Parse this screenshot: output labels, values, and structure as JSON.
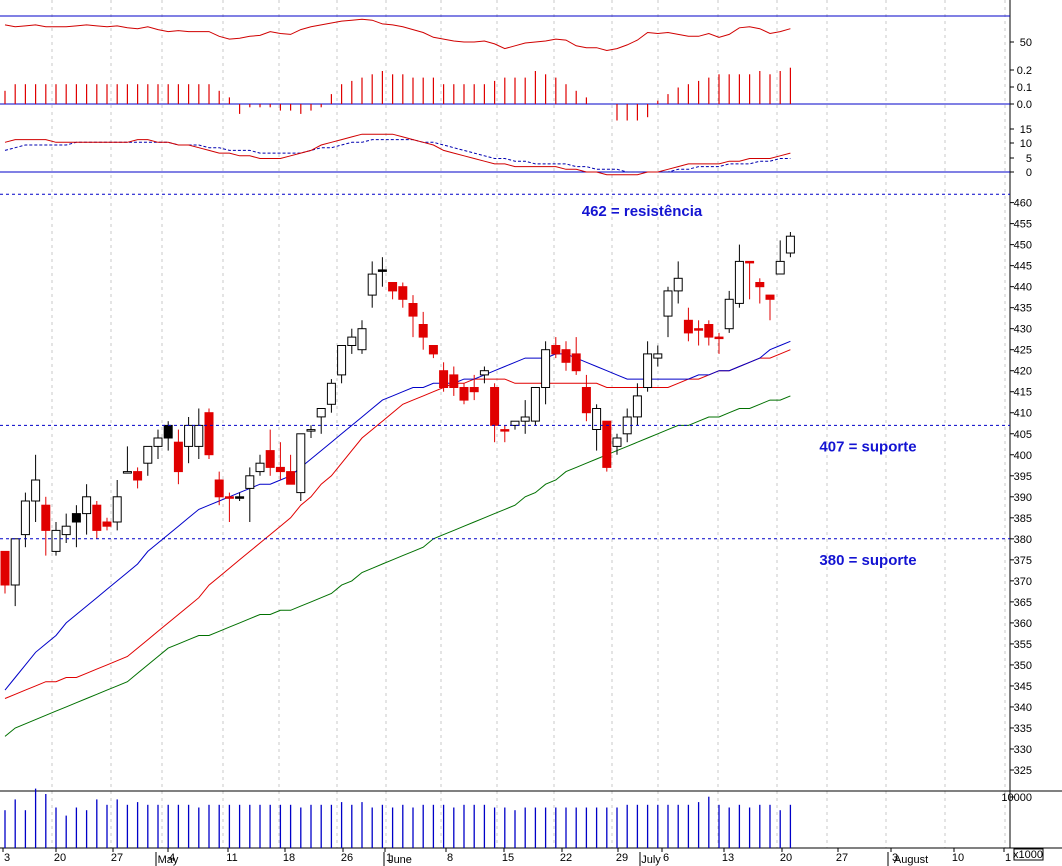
{
  "chart_data": {
    "type": "candlestick",
    "instrument_panels": [
      "rsi",
      "momentum",
      "macd",
      "price",
      "volume"
    ],
    "colors": {
      "up_body": "#ffffff",
      "down_body": "#e00000",
      "neutral_body": "#000000",
      "sma_short": "#0000c8",
      "sma_mid": "#e00000",
      "sma_long": "#007000",
      "reference_line": "#0000c8",
      "volume_bar": "#0000c8",
      "momentum_bar": "#e00000",
      "annotation_text": "#1414d2"
    },
    "price_panel": {
      "ylim": [
        320,
        463
      ],
      "y_ticks": [
        "460",
        "455",
        "450",
        "445",
        "440",
        "435",
        "430",
        "425",
        "420",
        "415",
        "410",
        "405",
        "400",
        "395",
        "390",
        "385",
        "380",
        "375",
        "370",
        "365",
        "360",
        "355",
        "350",
        "345",
        "340",
        "335",
        "330",
        "325"
      ],
      "candles": [
        {
          "o": 377,
          "h": 377,
          "l": 367,
          "c": 369,
          "d": "down"
        },
        {
          "o": 369,
          "h": 380,
          "l": 364,
          "c": 380,
          "d": "up"
        },
        {
          "o": 381,
          "h": 391,
          "l": 378,
          "c": 389,
          "d": "up"
        },
        {
          "o": 389,
          "h": 400,
          "l": 384,
          "c": 394,
          "d": "up"
        },
        {
          "o": 388,
          "h": 390,
          "l": 376,
          "c": 382,
          "d": "down"
        },
        {
          "o": 377,
          "h": 384,
          "l": 376,
          "c": 382,
          "d": "up"
        },
        {
          "o": 381,
          "h": 386,
          "l": 379,
          "c": 383,
          "d": "up"
        },
        {
          "o": 384,
          "h": 388,
          "l": 378,
          "c": 386,
          "d": "flat"
        },
        {
          "o": 386,
          "h": 393,
          "l": 381,
          "c": 390,
          "d": "up"
        },
        {
          "o": 388,
          "h": 389,
          "l": 380,
          "c": 382,
          "d": "down"
        },
        {
          "o": 384,
          "h": 385,
          "l": 382,
          "c": 383,
          "d": "down"
        },
        {
          "o": 384,
          "h": 394,
          "l": 382,
          "c": 390,
          "d": "up"
        },
        {
          "o": 396,
          "h": 402,
          "l": 396,
          "c": 396,
          "d": "up"
        },
        {
          "o": 396,
          "h": 397,
          "l": 392,
          "c": 394,
          "d": "down"
        },
        {
          "o": 398,
          "h": 401,
          "l": 395,
          "c": 402,
          "d": "up"
        },
        {
          "o": 402,
          "h": 406,
          "l": 399,
          "c": 404,
          "d": "up"
        },
        {
          "o": 407,
          "h": 408,
          "l": 401,
          "c": 404,
          "d": "flat"
        },
        {
          "o": 403,
          "h": 406,
          "l": 393,
          "c": 396,
          "d": "down"
        },
        {
          "o": 402,
          "h": 409,
          "l": 398,
          "c": 407,
          "d": "up"
        },
        {
          "o": 407,
          "h": 411,
          "l": 399,
          "c": 402,
          "d": "up"
        },
        {
          "o": 410,
          "h": 411,
          "l": 399,
          "c": 400,
          "d": "down"
        },
        {
          "o": 394,
          "h": 396,
          "l": 388,
          "c": 390,
          "d": "down"
        },
        {
          "o": 390,
          "h": 391,
          "l": 384,
          "c": 390,
          "d": "down"
        },
        {
          "o": 390,
          "h": 391,
          "l": 389,
          "c": 390,
          "d": "flat"
        },
        {
          "o": 392,
          "h": 397,
          "l": 384,
          "c": 395,
          "d": "up"
        },
        {
          "o": 396,
          "h": 400,
          "l": 395,
          "c": 398,
          "d": "up"
        },
        {
          "o": 401,
          "h": 406,
          "l": 395,
          "c": 397,
          "d": "down"
        },
        {
          "o": 397,
          "h": 403,
          "l": 394,
          "c": 396,
          "d": "down"
        },
        {
          "o": 396,
          "h": 400,
          "l": 393,
          "c": 393,
          "d": "down"
        },
        {
          "o": 391,
          "h": 405,
          "l": 389,
          "c": 405,
          "d": "up"
        },
        {
          "o": 406,
          "h": 407,
          "l": 404,
          "c": 406,
          "d": "up"
        },
        {
          "o": 409,
          "h": 411,
          "l": 405,
          "c": 411,
          "d": "up"
        },
        {
          "o": 412,
          "h": 418,
          "l": 410,
          "c": 417,
          "d": "up"
        },
        {
          "o": 419,
          "h": 426,
          "l": 417,
          "c": 426,
          "d": "up"
        },
        {
          "o": 426,
          "h": 430,
          "l": 424,
          "c": 428,
          "d": "up"
        },
        {
          "o": 425,
          "h": 432,
          "l": 424,
          "c": 430,
          "d": "up"
        },
        {
          "o": 438,
          "h": 446,
          "l": 435,
          "c": 443,
          "d": "up"
        },
        {
          "o": 444,
          "h": 447,
          "l": 440,
          "c": 444,
          "d": "flat"
        },
        {
          "o": 441,
          "h": 441,
          "l": 437,
          "c": 439,
          "d": "down"
        },
        {
          "o": 440,
          "h": 441,
          "l": 435,
          "c": 437,
          "d": "down"
        },
        {
          "o": 436,
          "h": 438,
          "l": 428,
          "c": 433,
          "d": "down"
        },
        {
          "o": 431,
          "h": 434,
          "l": 425,
          "c": 428,
          "d": "down"
        },
        {
          "o": 426,
          "h": 426,
          "l": 423,
          "c": 424,
          "d": "down"
        },
        {
          "o": 420,
          "h": 422,
          "l": 415,
          "c": 416,
          "d": "down"
        },
        {
          "o": 419,
          "h": 421,
          "l": 414,
          "c": 416,
          "d": "down"
        },
        {
          "o": 416,
          "h": 417,
          "l": 412,
          "c": 413,
          "d": "down"
        },
        {
          "o": 416,
          "h": 419,
          "l": 413,
          "c": 415,
          "d": "down"
        },
        {
          "o": 419,
          "h": 421,
          "l": 417,
          "c": 420,
          "d": "up"
        },
        {
          "o": 416,
          "h": 417,
          "l": 403,
          "c": 407,
          "d": "down"
        },
        {
          "o": 406,
          "h": 407,
          "l": 403,
          "c": 406,
          "d": "down"
        },
        {
          "o": 407,
          "h": 408,
          "l": 406,
          "c": 408,
          "d": "up"
        },
        {
          "o": 408,
          "h": 413,
          "l": 405,
          "c": 409,
          "d": "up"
        },
        {
          "o": 408,
          "h": 416,
          "l": 407,
          "c": 416,
          "d": "up"
        },
        {
          "o": 416,
          "h": 427,
          "l": 412,
          "c": 425,
          "d": "up"
        },
        {
          "o": 426,
          "h": 428,
          "l": 423,
          "c": 424,
          "d": "down"
        },
        {
          "o": 425,
          "h": 427,
          "l": 420,
          "c": 422,
          "d": "down"
        },
        {
          "o": 424,
          "h": 428,
          "l": 419,
          "c": 420,
          "d": "down"
        },
        {
          "o": 416,
          "h": 419,
          "l": 408,
          "c": 410,
          "d": "down"
        },
        {
          "o": 411,
          "h": 412,
          "l": 401,
          "c": 406,
          "d": "up"
        },
        {
          "o": 408,
          "h": 408,
          "l": 396,
          "c": 397,
          "d": "down"
        },
        {
          "o": 402,
          "h": 405,
          "l": 400,
          "c": 404,
          "d": "up"
        },
        {
          "o": 405,
          "h": 411,
          "l": 403,
          "c": 409,
          "d": "up"
        },
        {
          "o": 409,
          "h": 417,
          "l": 407,
          "c": 414,
          "d": "up"
        },
        {
          "o": 416,
          "h": 427,
          "l": 415,
          "c": 424,
          "d": "up"
        },
        {
          "o": 423,
          "h": 426,
          "l": 421,
          "c": 424,
          "d": "up"
        },
        {
          "o": 433,
          "h": 440,
          "l": 428,
          "c": 439,
          "d": "up"
        },
        {
          "o": 439,
          "h": 446,
          "l": 436,
          "c": 442,
          "d": "up"
        },
        {
          "o": 432,
          "h": 435,
          "l": 427,
          "c": 429,
          "d": "down"
        },
        {
          "o": 430,
          "h": 432,
          "l": 426,
          "c": 430,
          "d": "down"
        },
        {
          "o": 431,
          "h": 432,
          "l": 426,
          "c": 428,
          "d": "down"
        },
        {
          "o": 428,
          "h": 429,
          "l": 424,
          "c": 428,
          "d": "down"
        },
        {
          "o": 430,
          "h": 439,
          "l": 429,
          "c": 437,
          "d": "up"
        },
        {
          "o": 436,
          "h": 450,
          "l": 435,
          "c": 446,
          "d": "up"
        },
        {
          "o": 446,
          "h": 446,
          "l": 437,
          "c": 446,
          "d": "down"
        },
        {
          "o": 441,
          "h": 442,
          "l": 436,
          "c": 440,
          "d": "down"
        },
        {
          "o": 438,
          "h": 438,
          "l": 432,
          "c": 437,
          "d": "down"
        },
        {
          "o": 443,
          "h": 451,
          "l": 443,
          "c": 446,
          "d": "up"
        },
        {
          "o": 448,
          "h": 453,
          "l": 447,
          "c": 452,
          "d": "up"
        }
      ],
      "sma_short": [
        344,
        347,
        350,
        353,
        355,
        357,
        360,
        362,
        364,
        366,
        368,
        370,
        372,
        374,
        377,
        379,
        381,
        383,
        385,
        387,
        388,
        389,
        390,
        391,
        392,
        393,
        393,
        394,
        395,
        397,
        399,
        401,
        403,
        405,
        407,
        409,
        411,
        413,
        414,
        415,
        416,
        416,
        417,
        417,
        417,
        418,
        418,
        419,
        420,
        421,
        422,
        423,
        423,
        423,
        424,
        424,
        423,
        422,
        421,
        420,
        419,
        418,
        418,
        418,
        418,
        418,
        418,
        418,
        419,
        419,
        420,
        420,
        421,
        422,
        423,
        425,
        426,
        427
      ],
      "sma_mid": [
        342,
        343,
        344,
        345,
        346,
        346,
        347,
        347,
        348,
        349,
        350,
        351,
        352,
        354,
        356,
        358,
        360,
        362,
        364,
        366,
        369,
        371,
        373,
        375,
        377,
        379,
        381,
        383,
        385,
        388,
        390,
        393,
        395,
        398,
        401,
        404,
        406,
        408,
        410,
        412,
        413,
        414,
        415,
        416,
        417,
        417,
        418,
        418,
        418,
        418,
        417,
        417,
        417,
        417,
        417,
        417,
        417,
        417,
        417,
        416,
        416,
        416,
        416,
        416,
        416,
        416,
        417,
        418,
        418,
        419,
        420,
        420,
        421,
        422,
        423,
        423,
        424,
        425
      ],
      "sma_long": [
        333,
        335,
        336,
        337,
        338,
        339,
        340,
        341,
        342,
        343,
        344,
        345,
        346,
        348,
        350,
        352,
        354,
        355,
        356,
        357,
        357,
        358,
        359,
        360,
        361,
        362,
        362,
        363,
        363,
        364,
        365,
        366,
        367,
        369,
        370,
        372,
        373,
        374,
        375,
        376,
        377,
        378,
        380,
        381,
        382,
        383,
        384,
        385,
        386,
        387,
        388,
        390,
        391,
        393,
        394,
        396,
        397,
        398,
        399,
        400,
        401,
        402,
        403,
        404,
        405,
        406,
        407,
        407,
        408,
        409,
        409,
        410,
        411,
        411,
        412,
        413,
        413,
        414
      ]
    },
    "reference_lines": [
      {
        "value": 462,
        "label": "462 = resistência"
      },
      {
        "value": 407,
        "label": "407 = suporte"
      },
      {
        "value": 380,
        "label": "380 = suporte"
      }
    ],
    "rsi_panel": {
      "y_ticks": [
        "50"
      ],
      "values": [
        68,
        66,
        67,
        68,
        66,
        66,
        66,
        67,
        68,
        67,
        66,
        67,
        65,
        64,
        66,
        63,
        61,
        62,
        61,
        61,
        61,
        56,
        53,
        54,
        56,
        57,
        61,
        59,
        58,
        63,
        66,
        68,
        70,
        72,
        73,
        74,
        73,
        69,
        68,
        66,
        63,
        60,
        55,
        53,
        51,
        50,
        50,
        51,
        48,
        43,
        46,
        49,
        50,
        51,
        53,
        52,
        46,
        44,
        44,
        41,
        43,
        47,
        52,
        60,
        59,
        60,
        58,
        56,
        56,
        59,
        55,
        58,
        65,
        66,
        64,
        59,
        61,
        64
      ]
    },
    "momentum_panel": {
      "y_ticks": [
        "0.2",
        "0.1",
        "0.0"
      ],
      "values": [
        0.08,
        0.12,
        0.12,
        0.12,
        0.12,
        0.12,
        0.12,
        0.12,
        0.12,
        0.12,
        0.12,
        0.12,
        0.12,
        0.12,
        0.12,
        0.12,
        0.12,
        0.12,
        0.12,
        0.12,
        0.12,
        0.08,
        0.04,
        -0.06,
        -0.02,
        -0.02,
        -0.02,
        -0.04,
        -0.04,
        -0.06,
        -0.04,
        -0.02,
        0.06,
        0.12,
        0.14,
        0.16,
        0.18,
        0.2,
        0.18,
        0.18,
        0.16,
        0.16,
        0.16,
        0.12,
        0.12,
        0.12,
        0.12,
        0.12,
        0.14,
        0.16,
        0.16,
        0.16,
        0.2,
        0.18,
        0.16,
        0.12,
        0.08,
        0.04,
        0.0,
        0.0,
        -0.1,
        -0.1,
        -0.1,
        -0.08,
        0.02,
        0.06,
        0.1,
        0.12,
        0.14,
        0.16,
        0.18,
        0.18,
        0.18,
        0.18,
        0.2,
        0.18,
        0.2,
        0.22
      ]
    },
    "macd_panel": {
      "y_ticks": [
        "15",
        "10",
        "5",
        "0"
      ],
      "macd": [
        11,
        12,
        12,
        12,
        12,
        11,
        11,
        11,
        11,
        11,
        11,
        11,
        11,
        12,
        12,
        11,
        11,
        10,
        10,
        9,
        8,
        7,
        7,
        6,
        6,
        5,
        5,
        5,
        6,
        7,
        8,
        10,
        11,
        12,
        13,
        14,
        14,
        14,
        14,
        13,
        12,
        11,
        10,
        8,
        7,
        6,
        5,
        4,
        3,
        3,
        2,
        2,
        2,
        2,
        2,
        1,
        1,
        0,
        0,
        -1,
        -1,
        -1,
        -1,
        0,
        0,
        1,
        2,
        3,
        3,
        3,
        3,
        4,
        4,
        5,
        5,
        5,
        6,
        7
      ],
      "signal": [
        8,
        9,
        10,
        10,
        10,
        10,
        10,
        11,
        11,
        11,
        11,
        11,
        11,
        11,
        11,
        11,
        11,
        10,
        10,
        10,
        9,
        9,
        8,
        8,
        8,
        7,
        7,
        7,
        7,
        7,
        8,
        9,
        9,
        10,
        11,
        11,
        12,
        12,
        12,
        12,
        12,
        11,
        11,
        10,
        9,
        8,
        7,
        6,
        5,
        5,
        4,
        4,
        3,
        3,
        3,
        3,
        2,
        2,
        1,
        1,
        1,
        0,
        0,
        0,
        0,
        0,
        1,
        1,
        2,
        2,
        2,
        3,
        3,
        3,
        4,
        4,
        5,
        5
      ]
    },
    "volume_panel": {
      "y_ticks": [
        "10000"
      ],
      "multiplier_label": "x1000",
      "values": [
        7000,
        9000,
        7000,
        11000,
        10000,
        7500,
        6000,
        7500,
        7000,
        9000,
        8000,
        9000,
        8000,
        8500,
        8000,
        8000,
        8000,
        8000,
        8000,
        7500,
        8000,
        8000,
        8000,
        8000,
        8000,
        8000,
        8000,
        8000,
        8000,
        7500,
        8000,
        8000,
        8000,
        8500,
        8000,
        8500,
        7500,
        8000,
        7500,
        8000,
        7500,
        8000,
        8000,
        8000,
        7500,
        8000,
        8000,
        8000,
        7500,
        7500,
        7000,
        7500,
        7500,
        7500,
        7500,
        7500,
        7500,
        7500,
        7500,
        7500,
        7500,
        8000,
        8000,
        8000,
        8000,
        8000,
        8000,
        8000,
        8500,
        9500,
        8000,
        7500,
        8000,
        7500,
        8000,
        8000,
        7000,
        8000
      ]
    },
    "x_axis": {
      "day_labels": [
        "3",
        "20",
        "27",
        "4",
        "11",
        "18",
        "26",
        "1",
        "8",
        "15",
        "22",
        "29",
        "6",
        "13",
        "20",
        "27",
        "3",
        "10",
        "1"
      ],
      "month_labels": [
        "May",
        "June",
        "July",
        "August"
      ]
    }
  }
}
